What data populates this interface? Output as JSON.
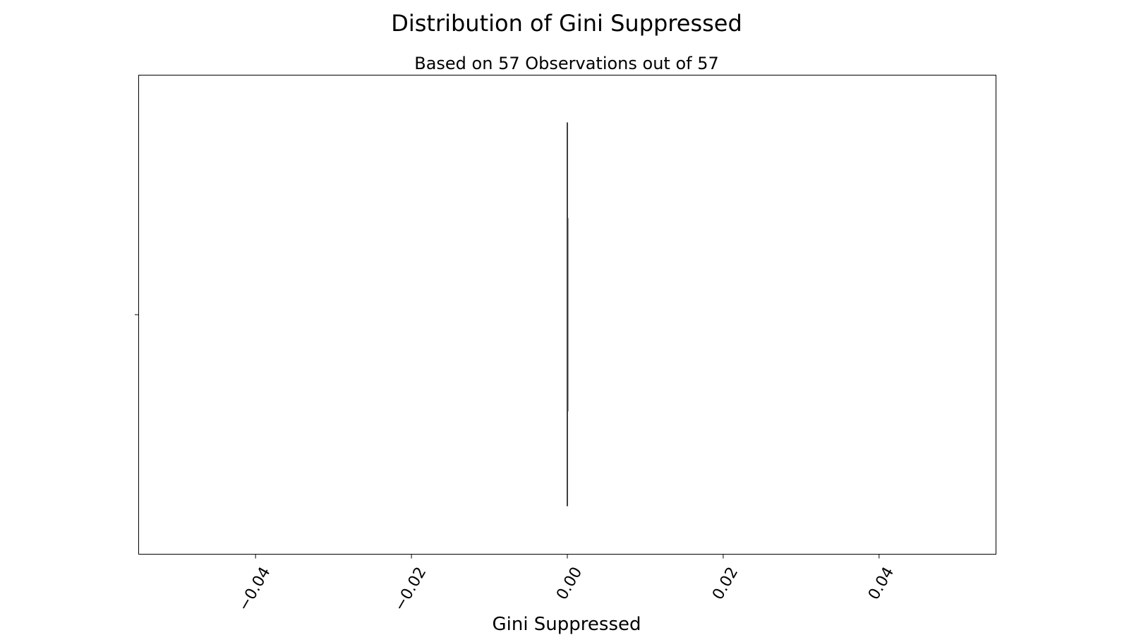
{
  "chart_data": {
    "type": "box",
    "title": "Distribution of Gini Suppressed",
    "subtitle": "Based on 57 Observations out of 57",
    "xlabel": "Gini Suppressed",
    "ylabel": "",
    "orientation": "horizontal",
    "xlim": [
      -0.055,
      0.055
    ],
    "xticks": [
      -0.04,
      -0.02,
      0.0,
      0.02,
      0.04
    ],
    "xtick_labels": [
      "−0.04",
      "−0.02",
      "0.00",
      "0.02",
      "0.04"
    ],
    "grid": false,
    "box": {
      "min": 0.0,
      "q1": 0.0,
      "median": 0.0,
      "q3": 0.0,
      "max": 0.0,
      "count": 57
    },
    "colors": {
      "box_line": "#3f3f3f",
      "axes": "#000000"
    }
  }
}
